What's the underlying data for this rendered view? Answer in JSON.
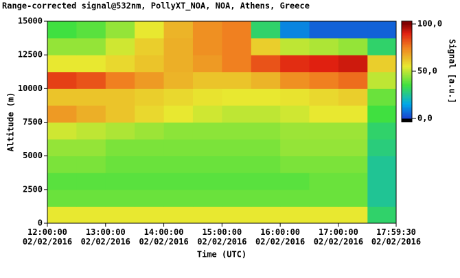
{
  "chart_data": {
    "type": "heatmap",
    "title": "Range-corrected signal@532nm, PollyXT_NOA, NOA, Athens, Greece",
    "x_label": "Time (UTC)",
    "y_label": "Altitude (m)",
    "colorbar_label": "Signal [a.u.]",
    "xlim": [
      12,
      17.991667
    ],
    "xticks": [
      {
        "value": 12,
        "label": "12:00:00\n02/02/2016"
      },
      {
        "value": 13,
        "label": "13:00:00\n02/02/2016"
      },
      {
        "value": 14,
        "label": "14:00:00\n02/02/2016"
      },
      {
        "value": 15,
        "label": "15:00:00\n02/02/2016"
      },
      {
        "value": 16,
        "label": "16:00:00\n02/02/2016"
      },
      {
        "value": 17,
        "label": "17:00:00\n02/02/2016"
      },
      {
        "value": 17.991667,
        "label": "17:59:30\n02/02/2016"
      }
    ],
    "ylim": [
      0,
      15000
    ],
    "yticks": [
      0,
      2500,
      5000,
      7500,
      10000,
      12500,
      15000
    ],
    "clim": [
      0,
      100
    ],
    "cticks": [
      {
        "value": 0,
        "label": "0,0"
      },
      {
        "value": 50,
        "label": "50,0"
      },
      {
        "value": 100,
        "label": "100,0"
      }
    ],
    "colormap": [
      [
        0,
        "#1a3fd0"
      ],
      [
        15,
        "#00a8e8"
      ],
      [
        35,
        "#40e040"
      ],
      [
        55,
        "#e8e830"
      ],
      [
        75,
        "#f08020"
      ],
      [
        90,
        "#e02010"
      ],
      [
        100,
        "#800000"
      ]
    ],
    "under_color": "#000000",
    "x_bins": [
      12,
      12.5,
      13,
      13.5,
      14,
      14.5,
      15,
      15.5,
      16,
      16.5,
      17,
      17.5,
      18
    ],
    "y_bins": [
      0,
      1250,
      2500,
      3750,
      5000,
      6250,
      7500,
      8750,
      10000,
      11250,
      12500,
      13750,
      15000
    ],
    "z": [
      [
        55,
        55,
        55,
        55,
        55,
        55,
        55,
        55,
        55,
        55,
        55,
        30
      ],
      [
        40,
        40,
        40,
        40,
        40,
        40,
        40,
        40,
        40,
        40,
        40,
        25
      ],
      [
        38,
        38,
        38,
        38,
        38,
        38,
        38,
        38,
        38,
        40,
        40,
        25
      ],
      [
        42,
        42,
        40,
        40,
        40,
        40,
        40,
        40,
        42,
        42,
        42,
        25
      ],
      [
        45,
        45,
        42,
        42,
        42,
        42,
        42,
        42,
        45,
        45,
        45,
        28
      ],
      [
        52,
        50,
        48,
        46,
        44,
        44,
        44,
        44,
        46,
        46,
        46,
        30
      ],
      [
        70,
        66,
        62,
        58,
        55,
        52,
        50,
        50,
        52,
        55,
        55,
        35
      ],
      [
        62,
        62,
        62,
        60,
        58,
        56,
        55,
        55,
        56,
        58,
        60,
        40
      ],
      [
        85,
        82,
        75,
        70,
        65,
        62,
        62,
        65,
        72,
        75,
        78,
        50
      ],
      [
        55,
        55,
        58,
        62,
        66,
        70,
        75,
        82,
        88,
        90,
        92,
        60
      ],
      [
        45,
        45,
        52,
        60,
        66,
        72,
        75,
        60,
        50,
        48,
        45,
        30
      ],
      [
        35,
        38,
        45,
        55,
        65,
        72,
        75,
        30,
        10,
        5,
        5,
        5
      ]
    ]
  }
}
